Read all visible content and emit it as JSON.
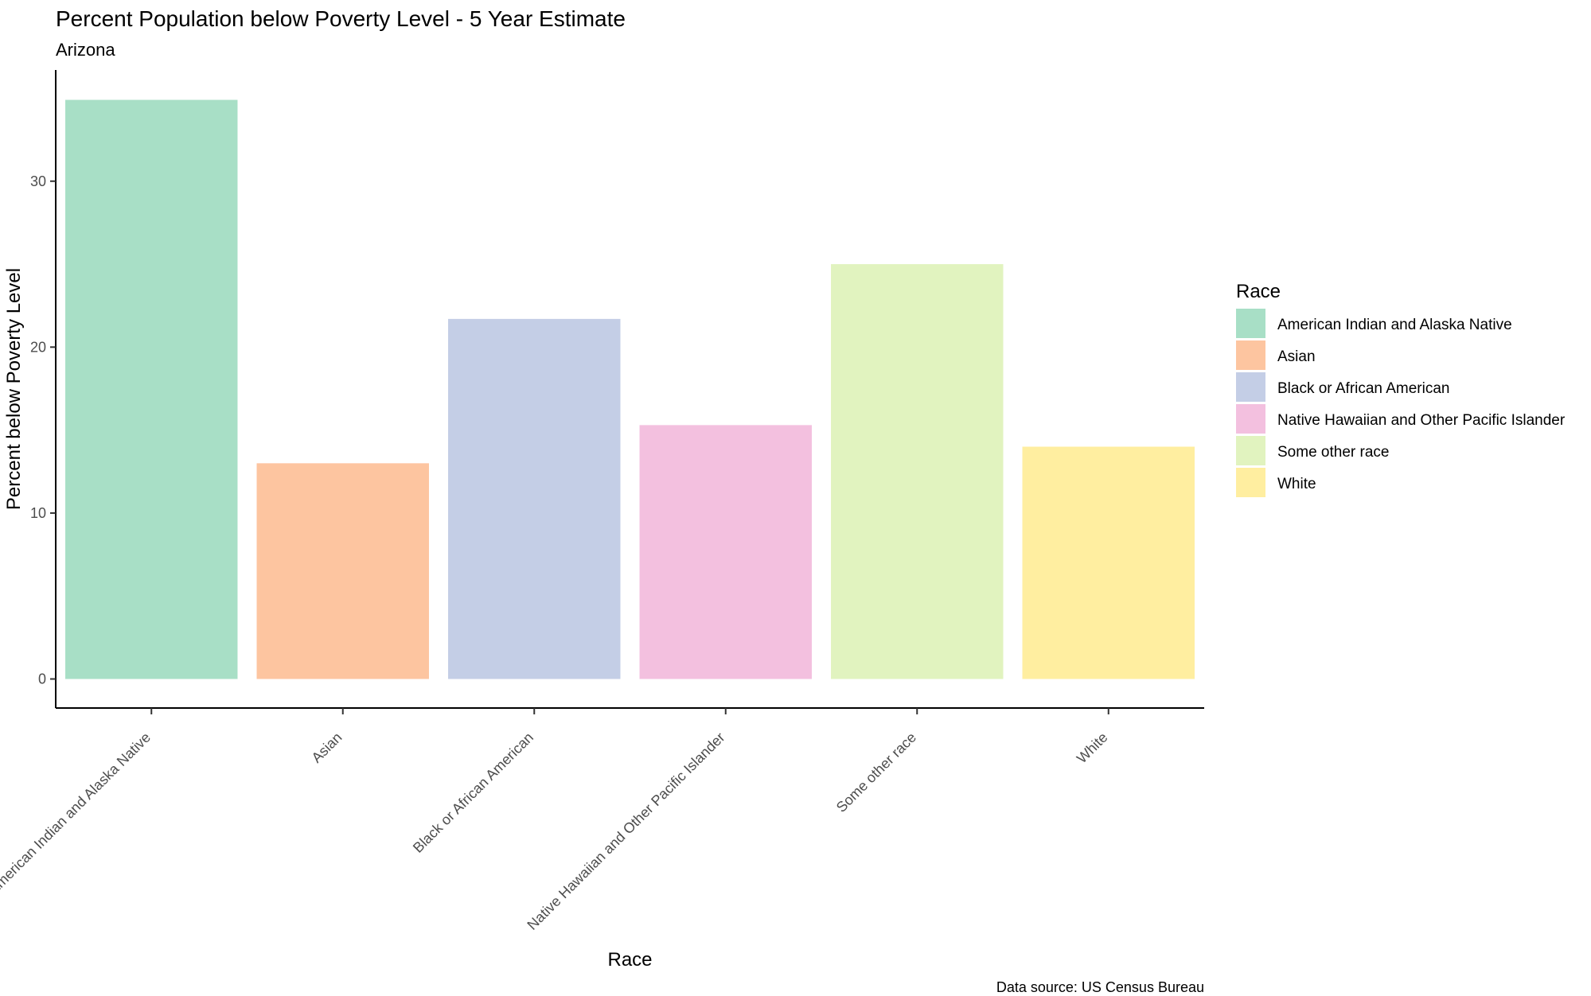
{
  "chart_data": {
    "type": "bar",
    "title": "Percent Population below Poverty Level - 5 Year Estimate",
    "subtitle": "Arizona",
    "xlabel": "Race",
    "ylabel": "Percent below Poverty Level",
    "caption": "Data source: US Census Bureau",
    "categories": [
      "American Indian and Alaska Native",
      "Asian",
      "Black or African American",
      "Native Hawaiian and Other Pacific Islander",
      "Some other race",
      "White"
    ],
    "values": [
      34.9,
      13.0,
      21.7,
      15.3,
      25.0,
      14.0
    ],
    "colors": [
      "#a8dfc6",
      "#fdc5a0",
      "#c4cee6",
      "#f3c0df",
      "#e1f3bf",
      "#ffeea0"
    ],
    "y_ticks": [
      0,
      10,
      20,
      30
    ],
    "ylim": [
      -1.75,
      36.7
    ],
    "legend": {
      "title": "Race",
      "position": "right",
      "entries": [
        "American Indian and Alaska Native",
        "Asian",
        "Black or African American",
        "Native Hawaiian and Other Pacific Islander",
        "Some other race",
        "White"
      ]
    },
    "grid": false
  }
}
